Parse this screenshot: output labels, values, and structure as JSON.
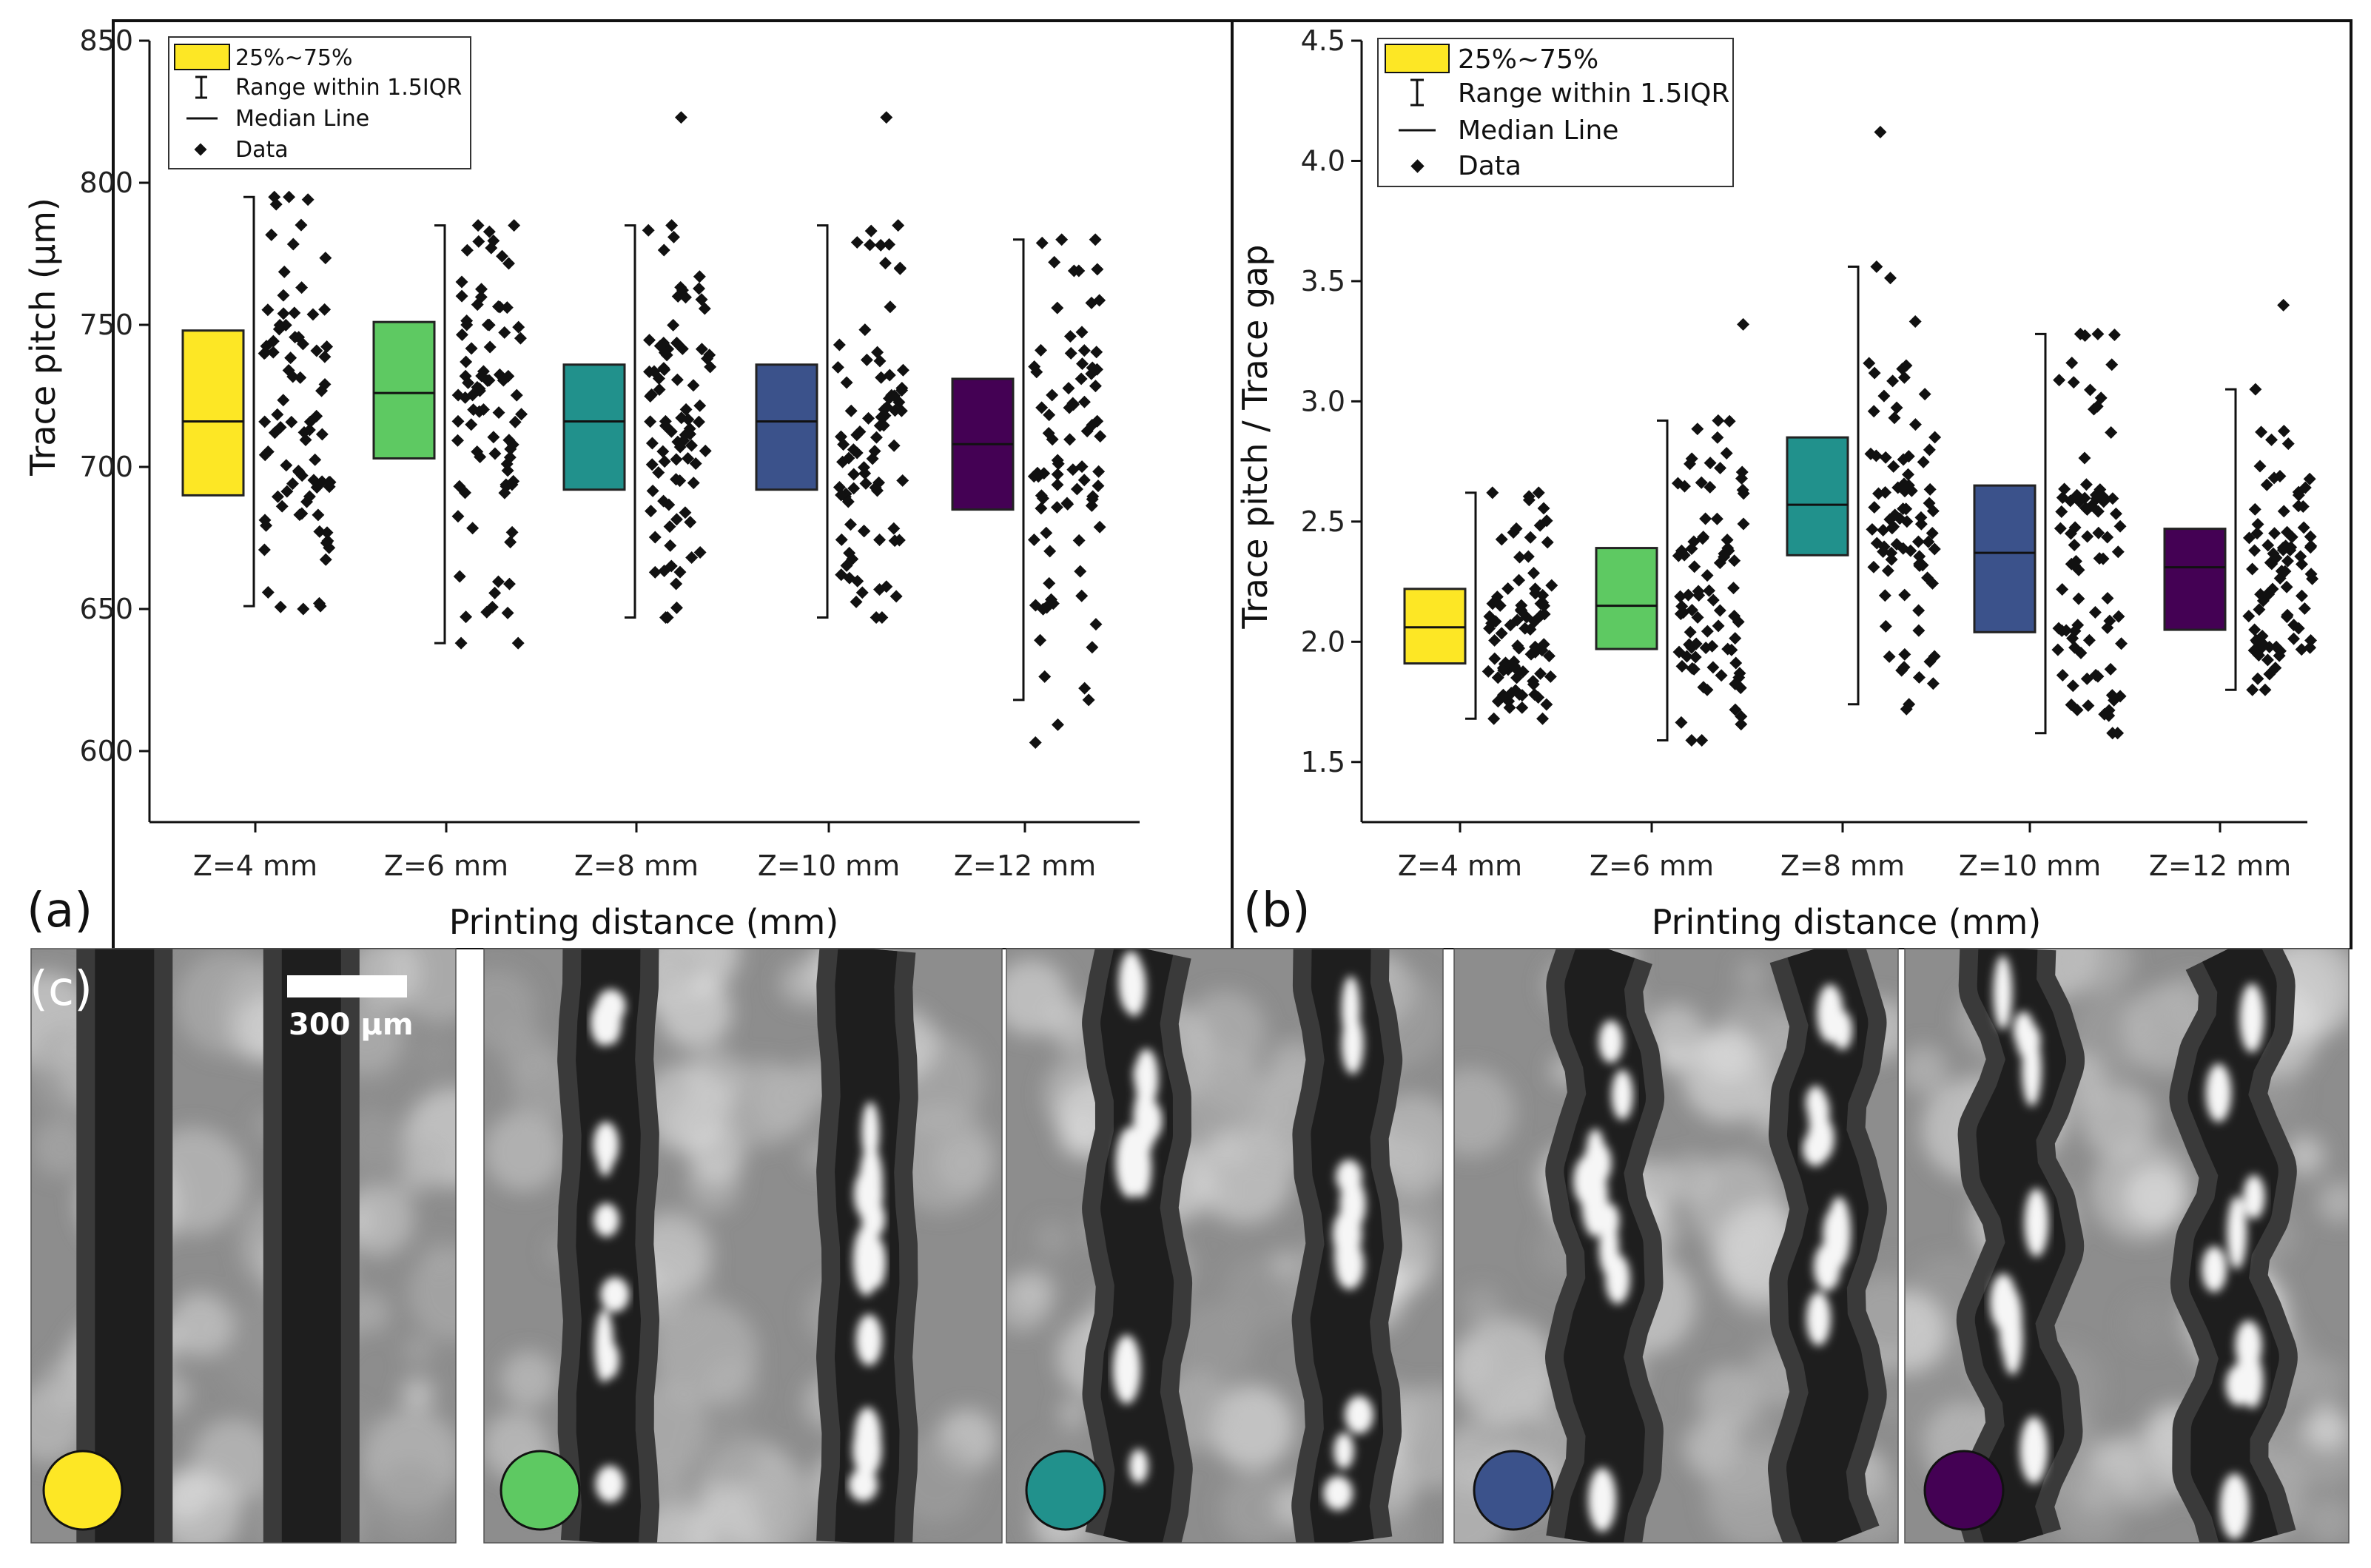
{
  "chart_data": [
    {
      "panel_label": "(a)",
      "type": "box",
      "title": "",
      "xlabel": "Printing distance (mm)",
      "ylabel": "Trace pitch (μm)",
      "categories": [
        "Z=4 mm",
        "Z=6 mm",
        "Z=8 mm",
        "Z=10 mm",
        "Z=12 mm"
      ],
      "ylim": [
        575,
        850
      ],
      "yticks": [
        600,
        650,
        700,
        750,
        800,
        850
      ],
      "ytick_labels": [
        "600",
        "650",
        "700",
        "750",
        "800",
        "850"
      ],
      "legend": {
        "position": "top-left",
        "entries": [
          "25%~75%",
          "Range within 1.5IQR",
          "Median Line",
          "Data"
        ]
      },
      "series": [
        {
          "name": "Z=4 mm",
          "color": "#fde725",
          "q1": 690,
          "median": 716,
          "q3": 748,
          "whisker_low": 651,
          "whisker_high": 795,
          "data_min": 650,
          "data_max": 795
        },
        {
          "name": "Z=6 mm",
          "color": "#5ec962",
          "q1": 703,
          "median": 726,
          "q3": 751,
          "whisker_low": 638,
          "whisker_high": 785,
          "data_min": 638,
          "data_max": 785
        },
        {
          "name": "Z=8 mm",
          "color": "#21918c",
          "q1": 692,
          "median": 716,
          "q3": 736,
          "whisker_low": 647,
          "whisker_high": 785,
          "data_min": 647,
          "data_max": 823
        },
        {
          "name": "Z=10 mm",
          "color": "#3b528b",
          "q1": 692,
          "median": 716,
          "q3": 736,
          "whisker_low": 647,
          "whisker_high": 785,
          "data_min": 647,
          "data_max": 823
        },
        {
          "name": "Z=12 mm",
          "color": "#440154",
          "q1": 685,
          "median": 708,
          "q3": 731,
          "whisker_low": 618,
          "whisker_high": 780,
          "data_min": 603,
          "data_max": 780
        }
      ]
    },
    {
      "panel_label": "(b)",
      "type": "box",
      "title": "",
      "xlabel": "Printing distance (mm)",
      "ylabel": "Trace pitch / Trace gap",
      "categories": [
        "Z=4 mm",
        "Z=6 mm",
        "Z=8 mm",
        "Z=10 mm",
        "Z=12 mm"
      ],
      "ylim": [
        1.25,
        4.5
      ],
      "yticks": [
        1.5,
        2.0,
        2.5,
        3.0,
        3.5,
        4.0,
        4.5
      ],
      "ytick_labels": [
        "1.5",
        "2.0",
        "2.5",
        "3.0",
        "3.5",
        "4.0",
        "4.5"
      ],
      "legend": {
        "position": "top-left",
        "entries": [
          "25%~75%",
          "Range within 1.5IQR",
          "Median Line",
          "Data"
        ]
      },
      "series": [
        {
          "name": "Z=4 mm",
          "color": "#fde725",
          "q1": 1.91,
          "median": 2.06,
          "q3": 2.22,
          "whisker_low": 1.68,
          "whisker_high": 2.62,
          "data_min": 1.68,
          "data_max": 2.62
        },
        {
          "name": "Z=6 mm",
          "color": "#5ec962",
          "q1": 1.97,
          "median": 2.15,
          "q3": 2.39,
          "whisker_low": 1.59,
          "whisker_high": 2.92,
          "data_min": 1.59,
          "data_max": 3.32
        },
        {
          "name": "Z=8 mm",
          "color": "#21918c",
          "q1": 2.36,
          "median": 2.57,
          "q3": 2.85,
          "whisker_low": 1.74,
          "whisker_high": 3.56,
          "data_min": 1.72,
          "data_max": 4.12
        },
        {
          "name": "Z=10 mm",
          "color": "#3b528b",
          "q1": 2.04,
          "median": 2.37,
          "q3": 2.65,
          "whisker_low": 1.62,
          "whisker_high": 3.28,
          "data_min": 1.62,
          "data_max": 3.28
        },
        {
          "name": "Z=12 mm",
          "color": "#440154",
          "q1": 2.05,
          "median": 2.31,
          "q3": 2.47,
          "whisker_low": 1.8,
          "whisker_high": 3.05,
          "data_min": 1.8,
          "data_max": 3.4
        }
      ]
    }
  ],
  "micrographs": {
    "panel_label": "(c)",
    "scale_bar_label": "300 μm",
    "tiles": [
      {
        "name": "Z=4 mm",
        "marker_color": "#fde725"
      },
      {
        "name": "Z=6 mm",
        "marker_color": "#5ec962"
      },
      {
        "name": "Z=8 mm",
        "marker_color": "#21918c"
      },
      {
        "name": "Z=10 mm",
        "marker_color": "#3b528b"
      },
      {
        "name": "Z=12 mm",
        "marker_color": "#440154"
      }
    ]
  }
}
